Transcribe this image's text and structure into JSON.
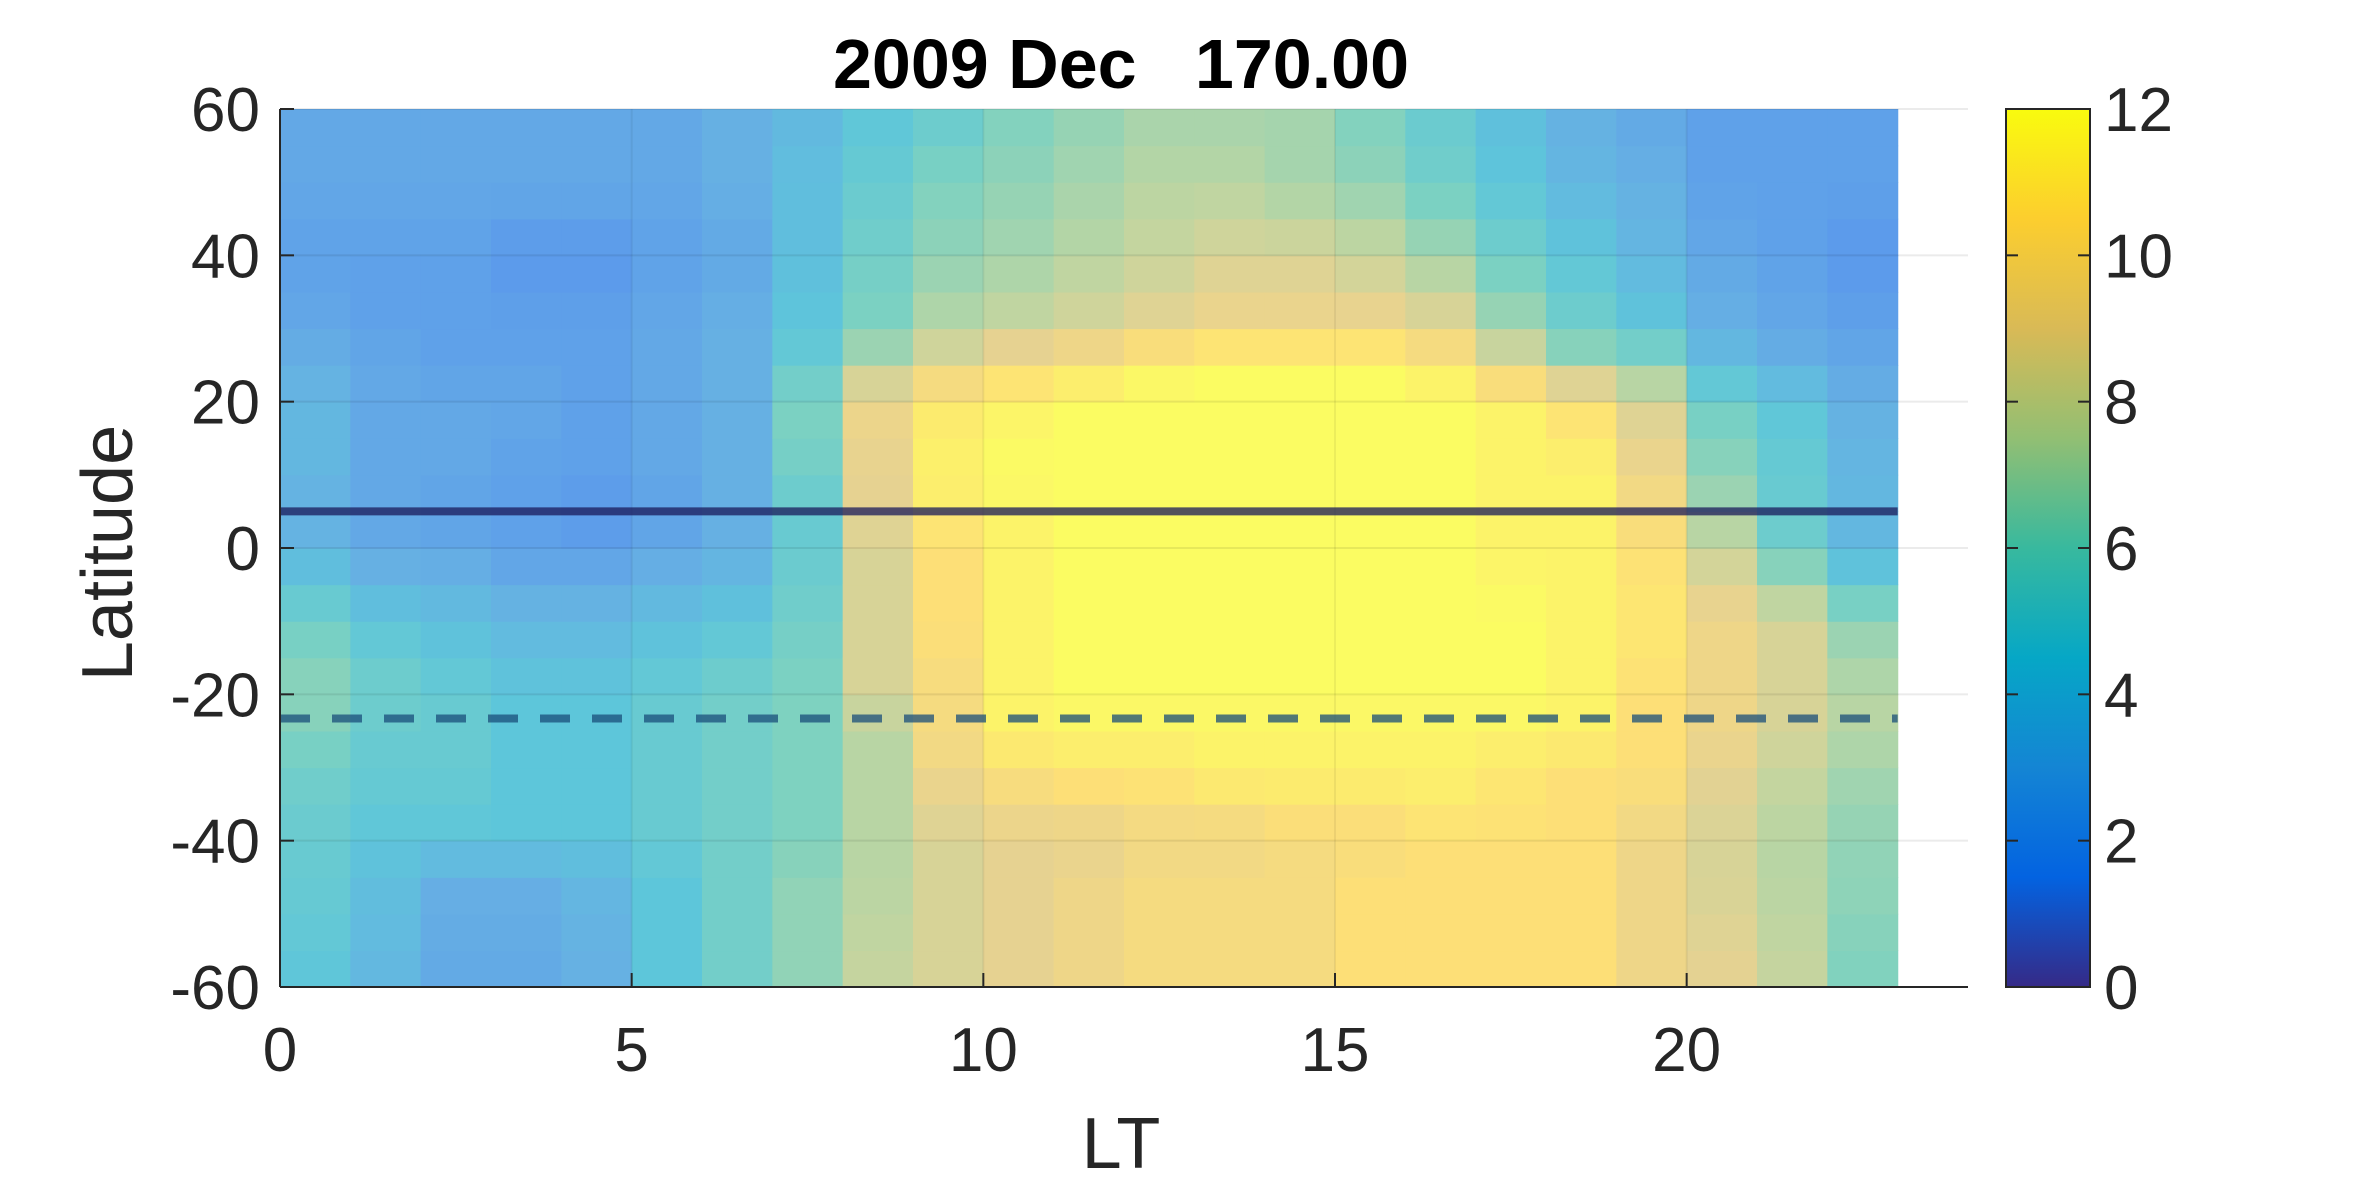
{
  "chart_data": {
    "type": "heatmap",
    "title": "2009 Dec   170.00",
    "xlabel": "LT",
    "ylabel": "Latitude",
    "xlim": [
      0,
      24
    ],
    "ylim": [
      -60,
      60
    ],
    "xticks": [
      0,
      5,
      10,
      15,
      20
    ],
    "yticks": [
      -60,
      -40,
      -20,
      0,
      20,
      40,
      60
    ],
    "colorbar": {
      "range": [
        0,
        12
      ],
      "ticks": [
        0,
        2,
        4,
        6,
        8,
        10,
        12
      ],
      "colormap": "parula"
    },
    "x_edges": [
      0,
      1,
      2,
      3,
      4,
      5,
      6,
      7,
      8,
      9,
      10,
      11,
      12,
      13,
      14,
      15,
      16,
      17,
      18,
      19,
      20,
      21,
      22,
      23
    ],
    "grid_x": [
      0,
      1,
      2,
      3,
      4,
      5,
      6,
      7,
      8,
      9,
      10,
      11,
      12,
      13,
      14,
      15,
      16,
      17,
      18,
      19,
      20,
      21,
      22,
      23
    ],
    "grid_y": [
      -60,
      -40,
      -20,
      0,
      20,
      40,
      60
    ],
    "lat_key_values": [
      -60,
      -45,
      -40,
      -30,
      -25,
      -20,
      -10,
      0,
      5,
      10,
      20,
      25,
      30,
      40,
      50,
      60
    ],
    "lat_key_profiles": [
      [
        4.5,
        3.5,
        2.5,
        2.5,
        3.0,
        4.5,
        5.5,
        6.5,
        8.0,
        8.5,
        9.0,
        9.5,
        10.0,
        10.0,
        10.0,
        10.5,
        10.5,
        10.5,
        10.5,
        9.5,
        9.0,
        8.0,
        6.0
      ],
      [
        5.0,
        4.0,
        3.0,
        3.0,
        3.5,
        4.5,
        5.5,
        6.5,
        7.5,
        8.5,
        9.0,
        9.5,
        10.0,
        10.0,
        10.0,
        10.5,
        10.5,
        10.5,
        10.5,
        9.5,
        8.5,
        7.5,
        6.5
      ],
      [
        5.0,
        4.5,
        4.5,
        4.5,
        4.5,
        5.0,
        5.5,
        6.0,
        7.5,
        8.5,
        9.0,
        9.0,
        9.5,
        9.5,
        10.0,
        10.0,
        10.5,
        10.5,
        10.5,
        9.5,
        8.5,
        7.5,
        6.5
      ],
      [
        5.5,
        5.0,
        5.0,
        4.5,
        4.5,
        5.0,
        5.5,
        6.0,
        7.5,
        9.5,
        10.5,
        11.0,
        11.0,
        11.5,
        11.5,
        11.5,
        11.5,
        11.0,
        10.5,
        10.5,
        9.0,
        8.0,
        7.0
      ],
      [
        6.0,
        5.0,
        5.0,
        4.5,
        4.5,
        5.0,
        5.5,
        6.0,
        7.5,
        10.0,
        11.5,
        11.5,
        11.5,
        11.5,
        11.5,
        11.5,
        11.5,
        11.5,
        11.5,
        10.5,
        9.5,
        8.5,
        7.5
      ],
      [
        6.5,
        5.5,
        5.0,
        4.5,
        4.5,
        5.0,
        5.5,
        6.0,
        8.5,
        10.0,
        11.5,
        12.0,
        12.0,
        12.0,
        12.0,
        12.0,
        12.0,
        12.0,
        11.5,
        10.5,
        9.5,
        8.5,
        7.5
      ],
      [
        5.5,
        4.5,
        4.0,
        3.5,
        3.5,
        4.0,
        4.5,
        5.5,
        8.5,
        10.5,
        11.5,
        12.0,
        12.0,
        12.0,
        12.0,
        12.0,
        12.0,
        12.0,
        11.5,
        11.0,
        9.5,
        8.5,
        6.5
      ],
      [
        3.5,
        2.5,
        2.5,
        2.0,
        2.0,
        2.5,
        3.0,
        5.0,
        8.5,
        10.5,
        11.5,
        12.0,
        12.0,
        12.0,
        12.0,
        12.0,
        12.0,
        11.5,
        11.5,
        10.5,
        8.0,
        5.5,
        3.5
      ],
      [
        3.0,
        2.5,
        2.0,
        2.0,
        1.5,
        2.0,
        3.0,
        5.0,
        9.0,
        11.0,
        11.5,
        12.0,
        12.0,
        12.0,
        12.0,
        12.0,
        12.0,
        11.5,
        11.5,
        10.0,
        7.0,
        5.0,
        3.5
      ],
      [
        3.5,
        2.5,
        2.5,
        2.0,
        2.0,
        2.5,
        3.0,
        5.5,
        9.0,
        11.5,
        12.0,
        12.0,
        12.0,
        12.0,
        12.0,
        12.0,
        12.0,
        11.5,
        11.5,
        9.5,
        6.5,
        5.0,
        3.5
      ],
      [
        3.5,
        2.5,
        2.5,
        2.5,
        2.0,
        2.5,
        3.0,
        6.0,
        9.5,
        11.0,
        11.5,
        12.0,
        12.0,
        12.0,
        12.0,
        12.0,
        12.0,
        11.5,
        10.5,
        8.5,
        5.5,
        4.5,
        3.0
      ],
      [
        3.0,
        2.5,
        2.0,
        2.0,
        2.0,
        2.5,
        3.0,
        5.0,
        7.5,
        9.0,
        10.0,
        10.5,
        11.5,
        12.0,
        12.0,
        12.0,
        11.0,
        9.0,
        7.0,
        6.5,
        4.0,
        3.0,
        2.5
      ],
      [
        2.5,
        2.0,
        2.0,
        2.0,
        2.0,
        2.5,
        3.0,
        4.5,
        6.0,
        7.5,
        8.0,
        8.5,
        9.0,
        9.5,
        9.5,
        9.5,
        9.0,
        7.0,
        5.5,
        4.5,
        3.0,
        2.5,
        2.0
      ],
      [
        2.0,
        2.0,
        2.0,
        1.5,
        1.5,
        2.0,
        2.5,
        4.0,
        5.5,
        6.5,
        7.0,
        7.5,
        8.0,
        8.5,
        8.5,
        8.0,
        7.0,
        5.5,
        4.5,
        3.5,
        2.5,
        2.0,
        1.5
      ],
      [
        2.5,
        2.5,
        2.5,
        2.5,
        2.5,
        2.5,
        3.0,
        4.0,
        5.0,
        6.0,
        6.5,
        7.0,
        7.5,
        7.5,
        7.0,
        6.5,
        5.5,
        4.5,
        3.5,
        3.0,
        2.0,
        2.0,
        2.0
      ],
      [
        2.5,
        2.5,
        2.5,
        2.5,
        2.5,
        2.5,
        3.0,
        3.5,
        4.5,
        5.0,
        6.0,
        6.5,
        7.0,
        7.0,
        7.0,
        6.0,
        5.0,
        4.0,
        3.0,
        2.5,
        2.0,
        2.0,
        2.0
      ]
    ],
    "lines": [
      {
        "y": 5,
        "style": "solid",
        "color": "#1a1a5a"
      },
      {
        "y": -23.3,
        "style": "dashed",
        "color": "#1a4e7a"
      }
    ],
    "overlay_opacity": 0.65
  }
}
